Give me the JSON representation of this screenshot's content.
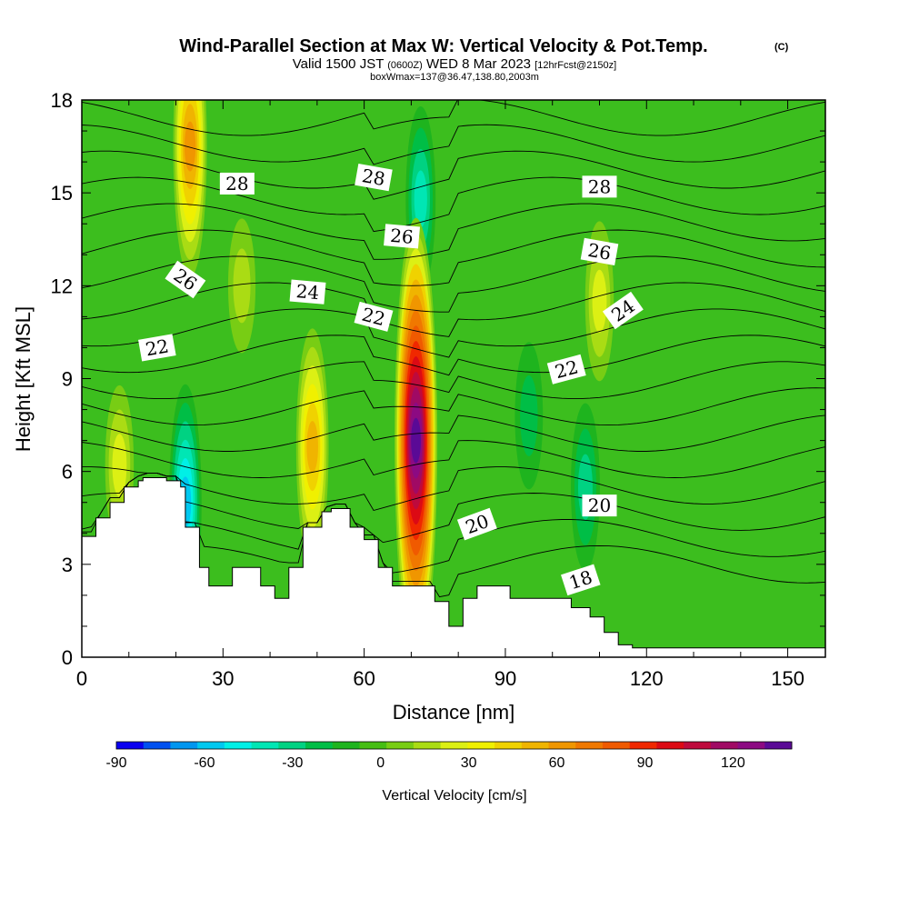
{
  "header": {
    "title": "Wind-Parallel Section at Max W: Vertical Velocity & Pot.Temp.",
    "copyright": "(C)",
    "valid_prefix": "Valid 1500 JST",
    "valid_utc": "(0600Z)",
    "valid_date": "WED 8 Mar 2023",
    "forecast_info": "[12hrFcst@2150z]",
    "box_info": "boxWmax=137@36.47,138.80,2003m"
  },
  "chart_data": {
    "type": "heatmap",
    "xlabel": "Distance [nm]",
    "ylabel": "Height [Kft MSL]",
    "xlim": [
      0,
      158
    ],
    "ylim": [
      0,
      18
    ],
    "x_ticks": [
      "0",
      "30",
      "60",
      "90",
      "120",
      "150"
    ],
    "y_ticks": [
      "0",
      "3",
      "6",
      "9",
      "12",
      "15",
      "18"
    ],
    "terrain": {
      "x": [
        0,
        3,
        6,
        9,
        12,
        13,
        15,
        18,
        21,
        22,
        25,
        27,
        30,
        32,
        35,
        38,
        41,
        44,
        47,
        50,
        51,
        53,
        57,
        60,
        63,
        66,
        69,
        71,
        75,
        78,
        81,
        84,
        87,
        91,
        94,
        99,
        104,
        108,
        111,
        114,
        117,
        119,
        158
      ],
      "y": [
        3.9,
        4.5,
        5.0,
        5.5,
        5.7,
        5.8,
        5.8,
        5.7,
        5.5,
        4.2,
        2.9,
        2.3,
        2.3,
        2.9,
        2.9,
        2.3,
        1.9,
        2.9,
        4.2,
        4.2,
        4.7,
        4.8,
        4.2,
        3.8,
        2.9,
        2.3,
        2.3,
        2.3,
        1.8,
        1.0,
        1.9,
        2.3,
        2.3,
        1.9,
        1.9,
        1.9,
        1.6,
        1.3,
        0.8,
        0.4,
        0.3,
        0.3,
        0.3
      ]
    },
    "vertical_velocity_features": [
      {
        "x": 71,
        "y": 7.0,
        "value": 137
      },
      {
        "x": 23,
        "y": 16.5,
        "value": 65
      },
      {
        "x": 49,
        "y": 6.8,
        "value": 55
      },
      {
        "x": 8,
        "y": 6.2,
        "value": 25
      },
      {
        "x": 22,
        "y": 5.0,
        "value": -55
      },
      {
        "x": 72,
        "y": 14.8,
        "value": -35
      },
      {
        "x": 107,
        "y": 5.5,
        "value": -28
      },
      {
        "x": 95,
        "y": 7.8,
        "value": -20
      },
      {
        "x": 110,
        "y": 11.5,
        "value": 25
      },
      {
        "x": 34,
        "y": 12.0,
        "value": 15
      }
    ],
    "theta_contours": [
      {
        "label": "18",
        "label_x": 106,
        "label_y": 2.5,
        "label_angle": 18
      },
      {
        "label": "20",
        "label_x": 84,
        "label_y": 4.3,
        "label_angle": 20
      },
      {
        "label": "20",
        "label_x": 110,
        "label_y": 4.9,
        "label_angle": 0
      },
      {
        "label": "22",
        "label_x": 16,
        "label_y": 10.0,
        "label_angle": 10
      },
      {
        "label": "22",
        "label_x": 62,
        "label_y": 11.0,
        "label_angle": -15
      },
      {
        "label": "22",
        "label_x": 103,
        "label_y": 9.3,
        "label_angle": 15
      },
      {
        "label": "24",
        "label_x": 48,
        "label_y": 11.8,
        "label_angle": -5
      },
      {
        "label": "24",
        "label_x": 115,
        "label_y": 11.2,
        "label_angle": 35
      },
      {
        "label": "26",
        "label_x": 22,
        "label_y": 12.2,
        "label_angle": -35
      },
      {
        "label": "26",
        "label_x": 68,
        "label_y": 13.6,
        "label_angle": -5
      },
      {
        "label": "26",
        "label_x": 110,
        "label_y": 13.1,
        "label_angle": -10
      },
      {
        "label": "28",
        "label_x": 33,
        "label_y": 15.3,
        "label_angle": 0
      },
      {
        "label": "28",
        "label_x": 62,
        "label_y": 15.5,
        "label_angle": -10
      },
      {
        "label": "28",
        "label_x": 110,
        "label_y": 15.2,
        "label_angle": 0
      }
    ],
    "colorbar": {
      "label": "Vertical Velocity [cm/s]",
      "tick_labels": [
        "-90",
        "-60",
        "-30",
        "0",
        "30",
        "60",
        "90",
        "120"
      ],
      "tick_values": [
        -90,
        -60,
        -30,
        0,
        30,
        60,
        90,
        120
      ],
      "range": [
        -90,
        140
      ],
      "colors": [
        "#0a00f0",
        "#0050f0",
        "#0096f0",
        "#00c8f0",
        "#00f0e6",
        "#00e6b4",
        "#00d282",
        "#00be46",
        "#1eb41e",
        "#46be14",
        "#78cd14",
        "#aadc14",
        "#dcf014",
        "#f0f000",
        "#f0d200",
        "#f0b400",
        "#f09600",
        "#f07800",
        "#f05a00",
        "#f02800",
        "#dc0a14",
        "#be0a3c",
        "#a00a64",
        "#8c0a82",
        "#5a0a96"
      ]
    }
  }
}
